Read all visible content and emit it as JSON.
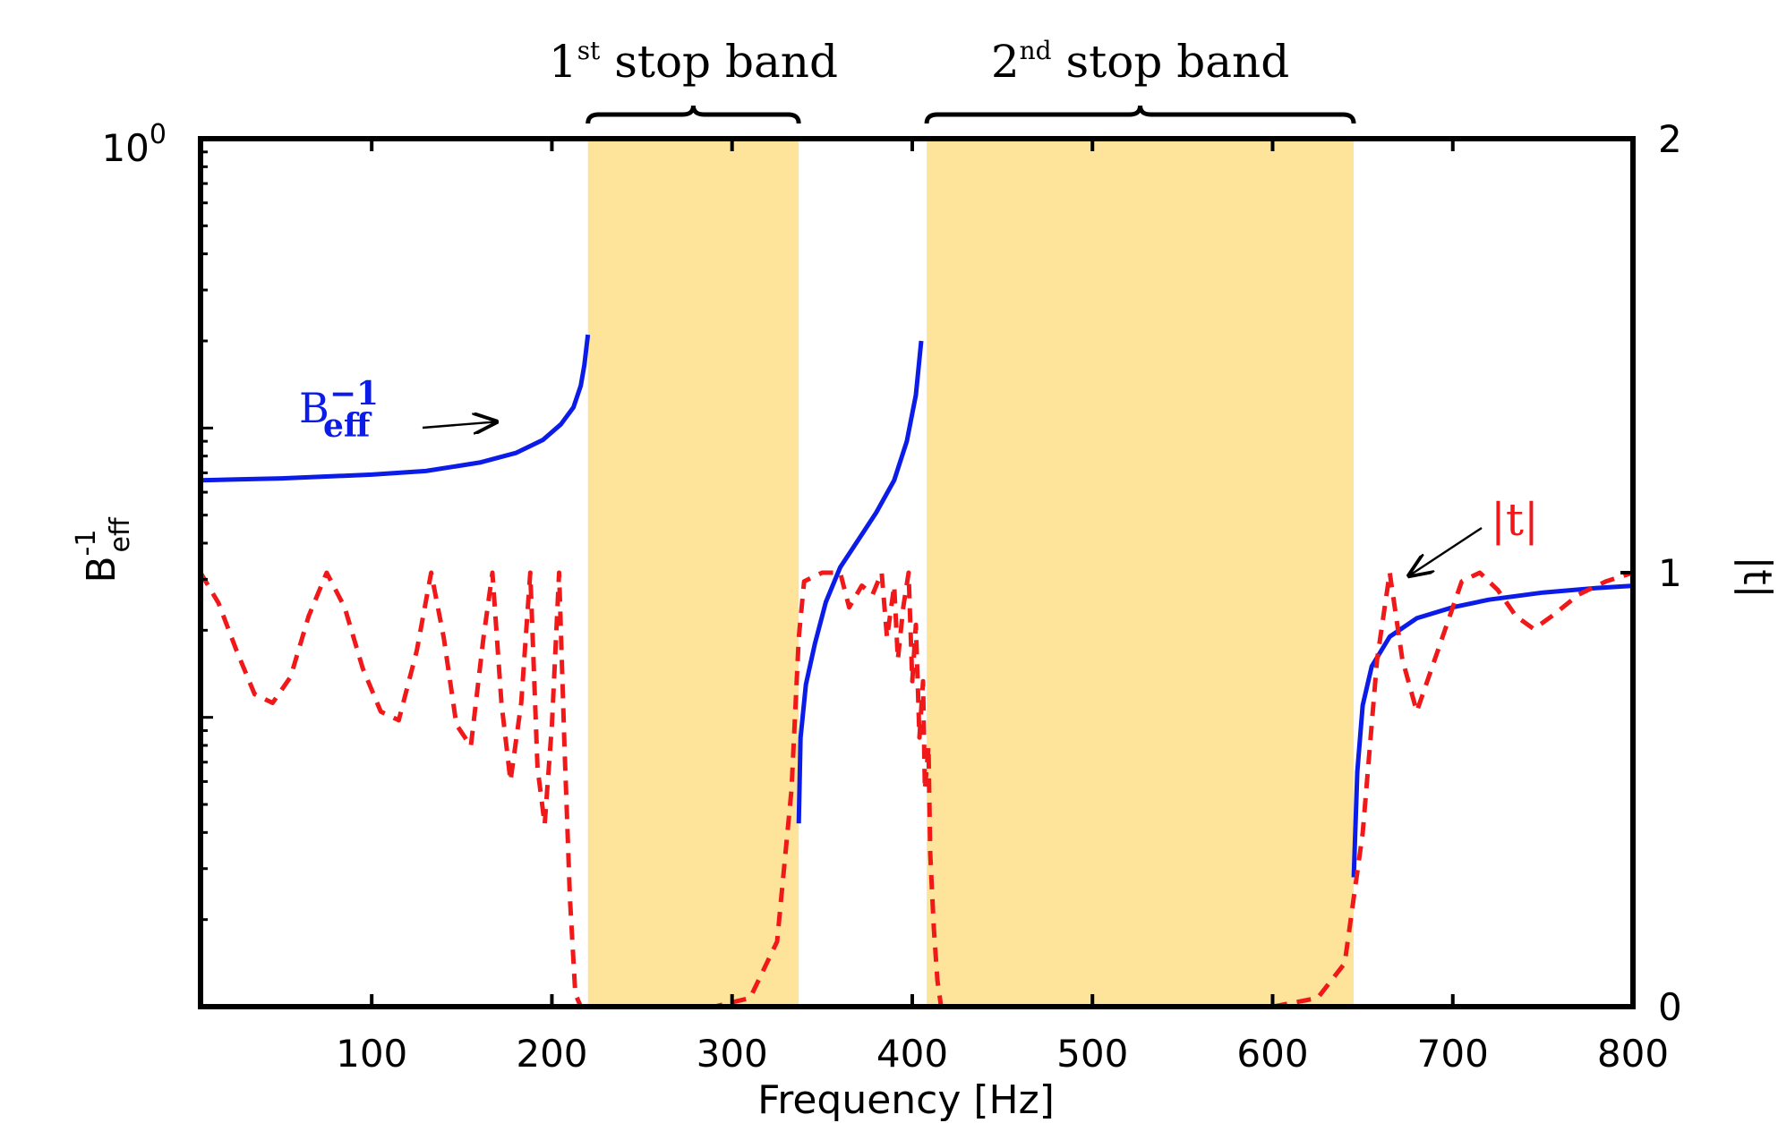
{
  "chart_data": {
    "type": "line",
    "xlabel": "Frequency [Hz]",
    "ylabel_left": "B",
    "ylabel_left_sup": "-1",
    "ylabel_left_sub": "eff",
    "ylabel_right": "|t|",
    "xlim": [
      5,
      800
    ],
    "ylim_left": [
      0.001,
      1
    ],
    "ylim_left_scale": "log",
    "ylim_right": [
      0,
      2
    ],
    "x_ticks": [
      100,
      200,
      300,
      400,
      500,
      600,
      700,
      800
    ],
    "x_tick_labels": [
      "100",
      "200",
      "300",
      "400",
      "500",
      "600",
      "700",
      "800"
    ],
    "left_tick_label": {
      "base": "10",
      "exp": "0"
    },
    "right_ticks": [
      0,
      1,
      2
    ],
    "right_tick_labels": [
      "0",
      "1",
      "2"
    ],
    "grid": false,
    "bands": [
      {
        "label_num": "1",
        "label_sup": "st",
        "label_text": " stop band",
        "x_start": 220,
        "x_end": 337,
        "color": "#fde49a"
      },
      {
        "label_num": "2",
        "label_sup": "nd",
        "label_text": " stop band",
        "x_start": 408,
        "x_end": 645,
        "color": "#fde49a"
      }
    ],
    "series": [
      {
        "name": "B_eff^-1",
        "axis": "left",
        "style": "solid",
        "color": "#0b1be8",
        "segments": [
          [
            [
              5,
              0.066
            ],
            [
              50,
              0.067
            ],
            [
              100,
              0.069
            ],
            [
              130,
              0.071
            ],
            [
              160,
              0.076
            ],
            [
              180,
              0.082
            ],
            [
              195,
              0.091
            ],
            [
              205,
              0.103
            ],
            [
              212,
              0.118
            ],
            [
              216,
              0.14
            ],
            [
              218,
              0.165
            ],
            [
              220,
              0.21
            ]
          ],
          [
            [
              337,
              0.0043
            ],
            [
              338,
              0.0085
            ],
            [
              341,
              0.013
            ],
            [
              346,
              0.018
            ],
            [
              352,
              0.025
            ],
            [
              360,
              0.033
            ],
            [
              370,
              0.041
            ],
            [
              380,
              0.051
            ],
            [
              390,
              0.066
            ],
            [
              397,
              0.09
            ],
            [
              402,
              0.13
            ],
            [
              405,
              0.2
            ]
          ],
          [
            [
              645,
              0.0028
            ],
            [
              647,
              0.0065
            ],
            [
              650,
              0.011
            ],
            [
              655,
              0.015
            ],
            [
              665,
              0.019
            ],
            [
              680,
              0.022
            ],
            [
              700,
              0.024
            ],
            [
              720,
              0.0255
            ],
            [
              750,
              0.027
            ],
            [
              780,
              0.028
            ],
            [
              800,
              0.0285
            ]
          ]
        ]
      },
      {
        "name": "|t|",
        "axis": "right",
        "style": "dashed",
        "color": "#f01818",
        "segments": [
          [
            [
              5,
              1.0
            ],
            [
              15,
              0.93
            ],
            [
              25,
              0.82
            ],
            [
              35,
              0.72
            ],
            [
              45,
              0.7
            ],
            [
              55,
              0.76
            ],
            [
              65,
              0.9
            ],
            [
              75,
              1.0
            ],
            [
              85,
              0.92
            ],
            [
              95,
              0.78
            ],
            [
              105,
              0.68
            ],
            [
              115,
              0.66
            ],
            [
              125,
              0.82
            ],
            [
              133,
              1.0
            ],
            [
              140,
              0.85
            ],
            [
              147,
              0.65
            ],
            [
              155,
              0.6
            ],
            [
              162,
              0.85
            ],
            [
              167,
              1.0
            ],
            [
              172,
              0.7
            ],
            [
              177,
              0.52
            ],
            [
              183,
              0.7
            ],
            [
              188,
              1.0
            ],
            [
              192,
              0.55
            ],
            [
              196,
              0.42
            ],
            [
              200,
              0.65
            ],
            [
              204,
              1.0
            ],
            [
              207,
              0.6
            ],
            [
              210,
              0.25
            ],
            [
              213,
              0.03
            ],
            [
              216,
              0.0
            ]
          ],
          [
            [
              260,
              0.0
            ],
            [
              290,
              0.0
            ],
            [
              310,
              0.02
            ],
            [
              325,
              0.15
            ],
            [
              333,
              0.5
            ],
            [
              337,
              0.85
            ],
            [
              340,
              0.98
            ],
            [
              350,
              1.0
            ],
            [
              360,
              1.0
            ],
            [
              365,
              0.92
            ],
            [
              372,
              0.97
            ],
            [
              378,
              0.95
            ],
            [
              383,
              1.0
            ],
            [
              386,
              0.85
            ],
            [
              390,
              0.97
            ],
            [
              392,
              0.8
            ],
            [
              395,
              0.92
            ],
            [
              398,
              1.0
            ],
            [
              400,
              0.75
            ],
            [
              402,
              0.88
            ],
            [
              404,
              0.62
            ],
            [
              406,
              0.75
            ],
            [
              407,
              0.5
            ],
            [
              409,
              0.6
            ],
            [
              410,
              0.35
            ],
            [
              412,
              0.18
            ],
            [
              414,
              0.06
            ],
            [
              416,
              0.0
            ]
          ],
          [
            [
              560,
              0.0
            ],
            [
              600,
              0.0
            ],
            [
              625,
              0.02
            ],
            [
              640,
              0.1
            ],
            [
              650,
              0.4
            ],
            [
              658,
              0.8
            ],
            [
              665,
              1.0
            ],
            [
              672,
              0.8
            ],
            [
              680,
              0.68
            ],
            [
              690,
              0.8
            ],
            [
              705,
              0.98
            ],
            [
              715,
              1.0
            ],
            [
              725,
              0.96
            ],
            [
              735,
              0.9
            ],
            [
              745,
              0.87
            ],
            [
              755,
              0.9
            ],
            [
              770,
              0.95
            ],
            [
              785,
              0.98
            ],
            [
              800,
              1.0
            ]
          ]
        ]
      }
    ],
    "annotations": [
      {
        "text": "B",
        "sup": "−1",
        "sub": "eff",
        "color": "#0b1be8",
        "arrow_to": [
          168,
          0.108
        ]
      },
      {
        "text": "|t|",
        "color": "#f01818",
        "arrow_to": [
          670,
          1.0
        ]
      }
    ]
  }
}
